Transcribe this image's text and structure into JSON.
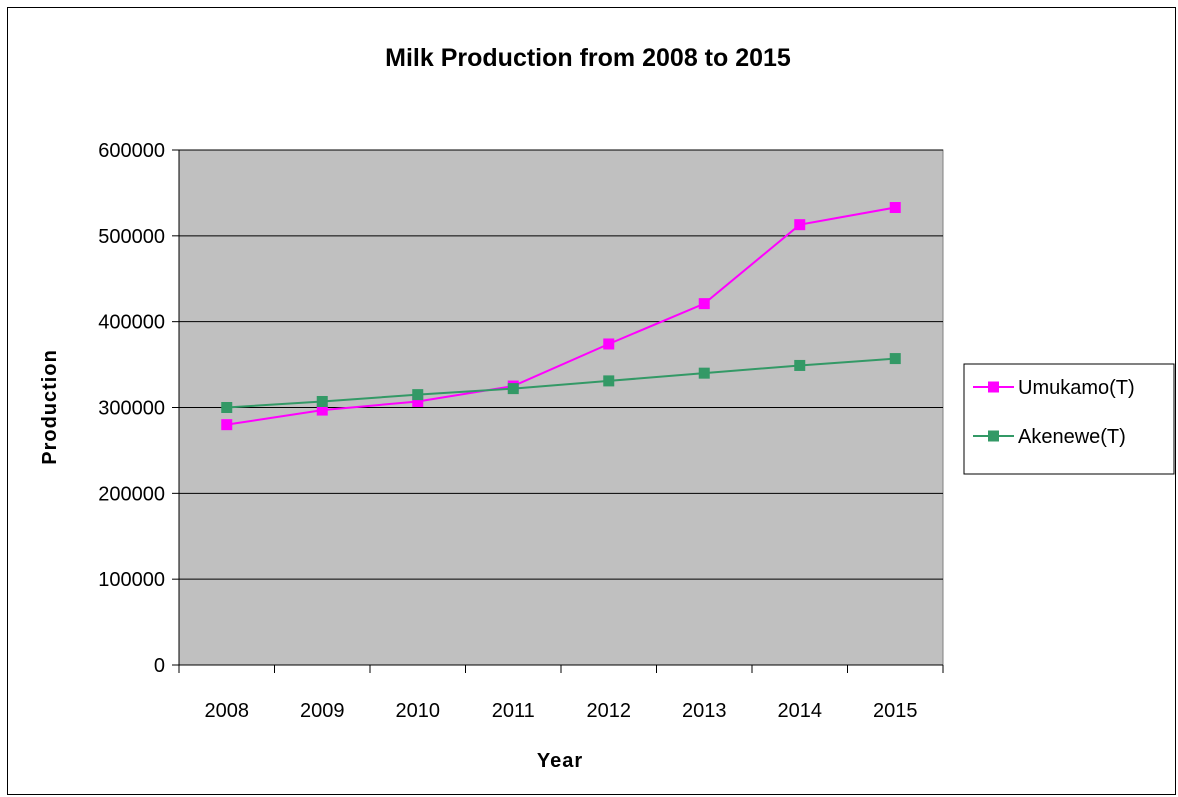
{
  "chart_data": {
    "type": "line",
    "title": "Milk Production from 2008 to 2015",
    "xlabel": "Year",
    "ylabel": "Production",
    "categories": [
      "2008",
      "2009",
      "2010",
      "2011",
      "2012",
      "2013",
      "2014",
      "2015"
    ],
    "ylim": [
      0,
      600000
    ],
    "yticks": [
      0,
      100000,
      200000,
      300000,
      400000,
      500000,
      600000
    ],
    "grid": true,
    "legend_position": "right",
    "plot_background": "#C0C0C0",
    "series": [
      {
        "name": "Umukamo(T)",
        "color": "#FF00FF",
        "marker": "square",
        "values": [
          280000,
          297000,
          307000,
          325000,
          374000,
          421000,
          513000,
          533000
        ]
      },
      {
        "name": "Akenewe(T)",
        "color": "#339966",
        "marker": "square",
        "values": [
          300000,
          307000,
          315000,
          322000,
          331000,
          340000,
          349000,
          357000
        ]
      }
    ]
  }
}
